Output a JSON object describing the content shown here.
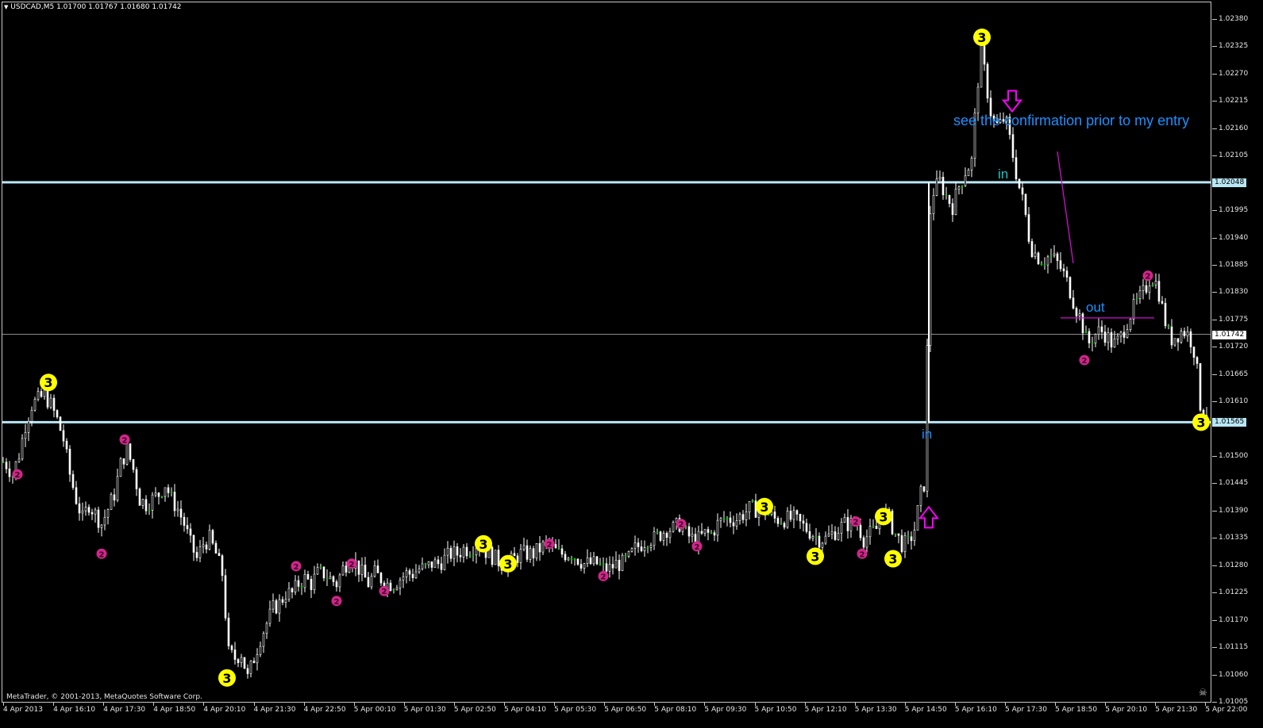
{
  "window": {
    "title": "USDCAD,M5  1.01700 1.01767 1.01680 1.01742",
    "copyright": "MetaTrader, © 2001-2013, MetaQuotes Software Corp.",
    "menu_icon": "triangle-down-icon",
    "close_icon": "skull-icon"
  },
  "colors": {
    "background": "#000000",
    "candle": "#ffffff",
    "level_line": "#b9e6f5",
    "bid_line": "#8c8c8c",
    "fractal_3": "#ffff00",
    "fractal_2": "#d1268b",
    "arrow": "#ff00ff",
    "annotation_text": "#1e90ff",
    "trend_line": "#d010d0"
  },
  "price_axis": {
    "labels": [
      "1.02380",
      "1.02325",
      "1.02270",
      "1.02215",
      "1.02160",
      "1.02105",
      "1.01995",
      "1.01940",
      "1.01885",
      "1.01830",
      "1.01775",
      "1.01720",
      "1.01665",
      "1.01610",
      "1.01500",
      "1.01445",
      "1.01390",
      "1.01335",
      "1.01280",
      "1.01225",
      "1.01170",
      "1.01115",
      "1.01060",
      "1.01005"
    ],
    "min": 1.01005,
    "max": 1.0238
  },
  "time_axis": {
    "labels": [
      "4 Apr 2013",
      "4 Apr 16:10",
      "4 Apr 17:30",
      "4 Apr 18:50",
      "4 Apr 20:10",
      "4 Apr 21:30",
      "4 Apr 22:50",
      "5 Apr 00:10",
      "5 Apr 01:30",
      "5 Apr 02:50",
      "5 Apr 04:10",
      "5 Apr 05:30",
      "5 Apr 06:50",
      "5 Apr 08:10",
      "5 Apr 09:30",
      "5 Apr 10:50",
      "5 Apr 12:10",
      "5 Apr 13:30",
      "5 Apr 14:50",
      "5 Apr 16:10",
      "5 Apr 17:30",
      "5 Apr 18:50",
      "5 Apr 20:10",
      "5 Apr 21:30",
      "5 Apr 22:00"
    ]
  },
  "horizontal_lines": [
    {
      "price": 1.02048,
      "label": "1.02048",
      "kind": "level"
    },
    {
      "price": 1.01742,
      "label": "1.01742",
      "kind": "bid"
    },
    {
      "price": 1.01565,
      "label": "1.01565",
      "kind": "level"
    }
  ],
  "annotations": {
    "confirmation_note": "see the confirmation prior to my entry",
    "in_upper": "in",
    "in_lower": "in",
    "out": "out"
  },
  "fractal_labels": {
    "big": "3",
    "small": "2"
  },
  "chart_data": {
    "type": "candlestick",
    "symbol": "USDCAD",
    "timeframe": "M5",
    "ohlc_latest": {
      "open": 1.017,
      "high": 1.01767,
      "low": 1.0168,
      "close": 1.01742
    },
    "ylim": [
      1.01005,
      1.0238
    ],
    "close_path": [
      [
        0,
        1.0149
      ],
      [
        8,
        1.0148
      ],
      [
        16,
        1.0146
      ],
      [
        24,
        1.015
      ],
      [
        32,
        1.0156
      ],
      [
        40,
        1.016
      ],
      [
        48,
        1.0161
      ],
      [
        56,
        1.0162
      ],
      [
        64,
        1.016
      ],
      [
        72,
        1.0157
      ],
      [
        80,
        1.0153
      ],
      [
        88,
        1.0146
      ],
      [
        96,
        1.0141
      ],
      [
        104,
        1.0137
      ],
      [
        112,
        1.014
      ],
      [
        120,
        1.0138
      ],
      [
        128,
        1.0136
      ],
      [
        136,
        1.0139
      ],
      [
        144,
        1.0142
      ],
      [
        152,
        1.0148
      ],
      [
        160,
        1.0151
      ],
      [
        168,
        1.0147
      ],
      [
        176,
        1.0141
      ],
      [
        184,
        1.014
      ],
      [
        192,
        1.0141
      ],
      [
        200,
        1.0142
      ],
      [
        208,
        1.0144
      ],
      [
        216,
        1.0141
      ],
      [
        224,
        1.0139
      ],
      [
        232,
        1.0136
      ],
      [
        240,
        1.0132
      ],
      [
        248,
        1.0129
      ],
      [
        256,
        1.0132
      ],
      [
        264,
        1.0133
      ],
      [
        272,
        1.013
      ],
      [
        280,
        1.0126
      ],
      [
        288,
        1.011
      ],
      [
        296,
        1.0109
      ],
      [
        304,
        1.011
      ],
      [
        312,
        1.0105
      ],
      [
        320,
        1.0109
      ],
      [
        328,
        1.0113
      ],
      [
        336,
        1.0116
      ],
      [
        344,
        1.0119
      ],
      [
        352,
        1.012
      ],
      [
        360,
        1.0122
      ],
      [
        368,
        1.0122
      ],
      [
        376,
        1.0124
      ],
      [
        384,
        1.0125
      ],
      [
        392,
        1.0124
      ],
      [
        400,
        1.0126
      ],
      [
        408,
        1.0126
      ],
      [
        416,
        1.0125
      ],
      [
        424,
        1.0124
      ],
      [
        432,
        1.0127
      ],
      [
        440,
        1.0129
      ],
      [
        448,
        1.0128
      ],
      [
        456,
        1.0126
      ],
      [
        464,
        1.0124
      ],
      [
        472,
        1.0126
      ],
      [
        480,
        1.0125
      ],
      [
        488,
        1.0124
      ],
      [
        496,
        1.0124
      ],
      [
        504,
        1.0125
      ],
      [
        512,
        1.0126
      ],
      [
        520,
        1.0126
      ],
      [
        528,
        1.0127
      ],
      [
        536,
        1.0127
      ],
      [
        544,
        1.0128
      ],
      [
        552,
        1.0128
      ],
      [
        560,
        1.0129
      ],
      [
        568,
        1.013
      ],
      [
        576,
        1.013
      ],
      [
        584,
        1.0131
      ],
      [
        592,
        1.0131
      ],
      [
        600,
        1.0132
      ],
      [
        608,
        1.0131
      ],
      [
        616,
        1.013
      ],
      [
        624,
        1.0129
      ],
      [
        632,
        1.0128
      ],
      [
        640,
        1.0128
      ],
      [
        648,
        1.0129
      ],
      [
        656,
        1.013
      ],
      [
        664,
        1.013
      ],
      [
        672,
        1.013
      ],
      [
        680,
        1.0131
      ],
      [
        688,
        1.0132
      ],
      [
        696,
        1.0131
      ],
      [
        704,
        1.013
      ],
      [
        712,
        1.013
      ],
      [
        720,
        1.013
      ],
      [
        728,
        1.0129
      ],
      [
        736,
        1.0128
      ],
      [
        744,
        1.0128
      ],
      [
        752,
        1.0128
      ],
      [
        760,
        1.0127
      ],
      [
        768,
        1.0127
      ],
      [
        776,
        1.0128
      ],
      [
        784,
        1.0128
      ],
      [
        792,
        1.0129
      ],
      [
        800,
        1.0131
      ],
      [
        808,
        1.0132
      ],
      [
        816,
        1.0133
      ],
      [
        824,
        1.0133
      ],
      [
        832,
        1.0134
      ],
      [
        840,
        1.0135
      ],
      [
        848,
        1.0135
      ],
      [
        856,
        1.0136
      ],
      [
        864,
        1.0134
      ],
      [
        872,
        1.0133
      ],
      [
        880,
        1.0133
      ],
      [
        888,
        1.0134
      ],
      [
        896,
        1.0134
      ],
      [
        904,
        1.0136
      ],
      [
        912,
        1.0137
      ],
      [
        920,
        1.0137
      ],
      [
        928,
        1.0137
      ],
      [
        936,
        1.0138
      ],
      [
        944,
        1.0139
      ],
      [
        952,
        1.0139
      ],
      [
        960,
        1.0139
      ],
      [
        968,
        1.0138
      ],
      [
        976,
        1.0137
      ],
      [
        984,
        1.0137
      ],
      [
        992,
        1.0137
      ],
      [
        1000,
        1.0137
      ],
      [
        1008,
        1.0136
      ],
      [
        1016,
        1.0135
      ],
      [
        1024,
        1.0134
      ],
      [
        1032,
        1.0133
      ],
      [
        1040,
        1.0133
      ],
      [
        1048,
        1.0134
      ],
      [
        1056,
        1.0135
      ],
      [
        1064,
        1.0136
      ],
      [
        1072,
        1.0136
      ],
      [
        1080,
        1.0136
      ],
      [
        1088,
        1.0133
      ],
      [
        1096,
        1.0134
      ],
      [
        1104,
        1.0135
      ],
      [
        1112,
        1.0139
      ],
      [
        1120,
        1.0137
      ],
      [
        1128,
        1.0134
      ],
      [
        1136,
        1.0132
      ],
      [
        1144,
        1.0132
      ],
      [
        1152,
        1.0135
      ],
      [
        1160,
        1.0142
      ],
      [
        1166,
        1.0145
      ],
      [
        1170,
        1.0197
      ],
      [
        1176,
        1.0203
      ],
      [
        1184,
        1.0205
      ],
      [
        1192,
        1.0202
      ],
      [
        1200,
        1.02
      ],
      [
        1208,
        1.0204
      ],
      [
        1216,
        1.0207
      ],
      [
        1224,
        1.0209
      ],
      [
        1230,
        1.0222
      ],
      [
        1236,
        1.0232
      ],
      [
        1242,
        1.0225
      ],
      [
        1250,
        1.0217
      ],
      [
        1258,
        1.0216
      ],
      [
        1266,
        1.0218
      ],
      [
        1274,
        1.0212
      ],
      [
        1282,
        1.0205
      ],
      [
        1290,
        1.02
      ],
      [
        1298,
        1.0192
      ],
      [
        1306,
        1.019
      ],
      [
        1314,
        1.0189
      ],
      [
        1322,
        1.019
      ],
      [
        1330,
        1.0189
      ],
      [
        1338,
        1.0187
      ],
      [
        1346,
        1.0184
      ],
      [
        1354,
        1.018
      ],
      [
        1362,
        1.0177
      ],
      [
        1370,
        1.0172
      ],
      [
        1378,
        1.0174
      ],
      [
        1386,
        1.0175
      ],
      [
        1394,
        1.0174
      ],
      [
        1402,
        1.0172
      ],
      [
        1410,
        1.0173
      ],
      [
        1418,
        1.0176
      ],
      [
        1426,
        1.0179
      ],
      [
        1434,
        1.0181
      ],
      [
        1442,
        1.0183
      ],
      [
        1450,
        1.0186
      ],
      [
        1458,
        1.0184
      ],
      [
        1466,
        1.0178
      ],
      [
        1474,
        1.0173
      ],
      [
        1482,
        1.0174
      ],
      [
        1490,
        1.0175
      ],
      [
        1498,
        1.0174
      ],
      [
        1506,
        1.017
      ],
      [
        1512,
        1.016
      ],
      [
        1518,
        1.0158
      ],
      [
        1524,
        1.016
      ]
    ],
    "fractals": [
      {
        "x": 61,
        "price": 1.01645,
        "kind": "3"
      },
      {
        "x": 286,
        "price": 1.0105,
        "kind": "3"
      },
      {
        "x": 609,
        "price": 1.0132,
        "kind": "3"
      },
      {
        "x": 640,
        "price": 1.0128,
        "kind": "3"
      },
      {
        "x": 963,
        "price": 1.01395,
        "kind": "3"
      },
      {
        "x": 1027,
        "price": 1.01295,
        "kind": "3"
      },
      {
        "x": 1113,
        "price": 1.01375,
        "kind": "3"
      },
      {
        "x": 1125,
        "price": 1.0129,
        "kind": "3"
      },
      {
        "x": 1237,
        "price": 1.0234,
        "kind": "3"
      },
      {
        "x": 1513,
        "price": 1.01565,
        "kind": "3"
      },
      {
        "x": 22,
        "price": 1.0146,
        "kind": "2"
      },
      {
        "x": 128,
        "price": 1.013,
        "kind": "2"
      },
      {
        "x": 157,
        "price": 1.0153,
        "kind": "2"
      },
      {
        "x": 373,
        "price": 1.01275,
        "kind": "2"
      },
      {
        "x": 424,
        "price": 1.01205,
        "kind": "2"
      },
      {
        "x": 443,
        "price": 1.0128,
        "kind": "2"
      },
      {
        "x": 484,
        "price": 1.01225,
        "kind": "2"
      },
      {
        "x": 692,
        "price": 1.0132,
        "kind": "2"
      },
      {
        "x": 760,
        "price": 1.01255,
        "kind": "2"
      },
      {
        "x": 858,
        "price": 1.0136,
        "kind": "2"
      },
      {
        "x": 878,
        "price": 1.01315,
        "kind": "2"
      },
      {
        "x": 1078,
        "price": 1.01365,
        "kind": "2"
      },
      {
        "x": 1086,
        "price": 1.013,
        "kind": "2"
      },
      {
        "x": 1366,
        "price": 1.0169,
        "kind": "2"
      },
      {
        "x": 1446,
        "price": 1.0186,
        "kind": "2"
      }
    ],
    "arrows": [
      {
        "x": 1275,
        "price": 1.0221,
        "direction": "down"
      },
      {
        "x": 1170,
        "price": 1.01375,
        "direction": "up"
      }
    ],
    "annotation_lines": [
      {
        "x1": 1332,
        "p1": 1.0211,
        "x2": 1352,
        "p2": 1.01885
      },
      {
        "x1": 1336,
        "p1": 1.01775,
        "x2": 1454,
        "p2": 1.01775
      },
      {
        "x1": 1170,
        "p1": 1.01565,
        "x2": 1170,
        "p2": 1.02048
      }
    ]
  }
}
